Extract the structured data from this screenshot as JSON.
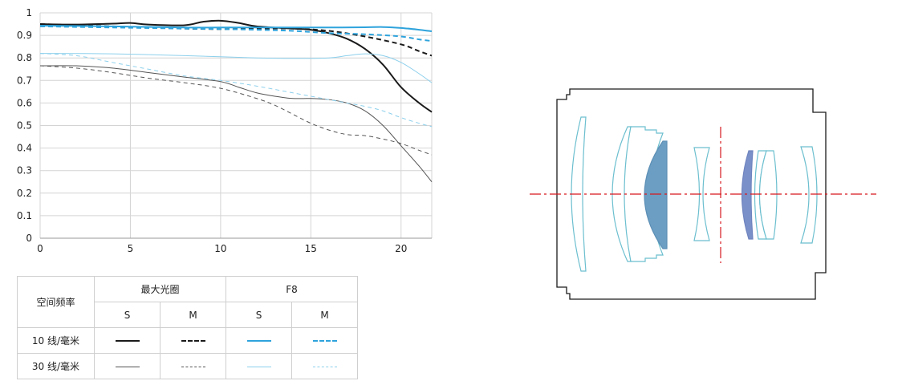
{
  "chart_data": {
    "type": "line",
    "x_ticks": [
      0,
      5,
      10,
      15,
      20
    ],
    "y_ticks": [
      "0",
      "0.1",
      "0.2",
      "0.3",
      "0.4",
      "0.5",
      "0.6",
      "0.7",
      "0.8",
      "0.9",
      "1"
    ],
    "xlim": [
      0,
      21.7
    ],
    "ylim": [
      0,
      1
    ],
    "grid": true,
    "series": [
      {
        "aperture": "最大光圈",
        "freq": "10 线/毫米",
        "type": "S",
        "color": "#1a1a1a",
        "width": 2,
        "dash": "",
        "x": [
          0,
          2,
          4,
          5,
          6,
          8,
          9,
          10,
          11,
          12,
          14,
          15,
          16,
          17,
          18,
          19,
          20,
          21,
          21.7
        ],
        "y": [
          0.95,
          0.948,
          0.952,
          0.955,
          0.948,
          0.945,
          0.96,
          0.965,
          0.955,
          0.94,
          0.93,
          0.925,
          0.91,
          0.885,
          0.84,
          0.77,
          0.67,
          0.6,
          0.56
        ]
      },
      {
        "aperture": "最大光圈",
        "freq": "10 线/毫米",
        "type": "M",
        "color": "#1a1a1a",
        "width": 2,
        "dash": "6,4",
        "x": [
          0,
          2,
          4,
          6,
          8,
          10,
          12,
          14,
          16,
          18,
          20,
          21,
          21.7
        ],
        "y": [
          0.95,
          0.945,
          0.94,
          0.935,
          0.93,
          0.928,
          0.93,
          0.93,
          0.92,
          0.895,
          0.86,
          0.83,
          0.81
        ]
      },
      {
        "aperture": "F8",
        "freq": "10 线/毫米",
        "type": "S",
        "color": "#2ea3dc",
        "width": 2,
        "dash": "",
        "x": [
          0,
          4,
          8,
          10,
          12,
          14,
          16,
          18,
          19,
          20,
          21,
          21.7
        ],
        "y": [
          0.943,
          0.94,
          0.935,
          0.935,
          0.935,
          0.935,
          0.935,
          0.936,
          0.937,
          0.933,
          0.925,
          0.918
        ]
      },
      {
        "aperture": "F8",
        "freq": "10 线/毫米",
        "type": "M",
        "color": "#2ea3dc",
        "width": 2,
        "dash": "6,4",
        "x": [
          0,
          4,
          8,
          10,
          12,
          14,
          16,
          18,
          20,
          21,
          21.7
        ],
        "y": [
          0.94,
          0.935,
          0.93,
          0.928,
          0.925,
          0.92,
          0.91,
          0.905,
          0.895,
          0.882,
          0.875
        ]
      },
      {
        "aperture": "最大光圈",
        "freq": "30 线/毫米",
        "type": "S",
        "color": "#555555",
        "width": 1,
        "dash": "",
        "x": [
          0,
          2,
          4,
          6,
          8,
          10,
          11,
          12,
          13,
          14,
          15,
          16,
          17,
          18,
          19,
          20,
          21,
          21.7
        ],
        "y": [
          0.765,
          0.765,
          0.755,
          0.735,
          0.715,
          0.695,
          0.67,
          0.645,
          0.63,
          0.62,
          0.62,
          0.615,
          0.6,
          0.565,
          0.5,
          0.41,
          0.32,
          0.25
        ]
      },
      {
        "aperture": "最大光圈",
        "freq": "30 线/毫米",
        "type": "M",
        "color": "#555555",
        "width": 1,
        "dash": "5,4",
        "x": [
          0,
          2,
          4,
          6,
          8,
          10,
          12,
          13,
          14,
          15,
          16,
          17,
          18,
          19,
          20,
          21,
          21.7
        ],
        "y": [
          0.765,
          0.755,
          0.735,
          0.71,
          0.69,
          0.665,
          0.62,
          0.59,
          0.55,
          0.51,
          0.48,
          0.46,
          0.455,
          0.44,
          0.42,
          0.39,
          0.37
        ]
      },
      {
        "aperture": "F8",
        "freq": "30 线/毫米",
        "type": "S",
        "color": "#8dd0ec",
        "width": 1,
        "dash": "",
        "x": [
          0,
          4,
          8,
          10,
          12,
          14,
          16,
          17,
          18,
          19,
          20,
          21,
          21.7
        ],
        "y": [
          0.82,
          0.818,
          0.81,
          0.805,
          0.8,
          0.798,
          0.8,
          0.81,
          0.818,
          0.81,
          0.78,
          0.73,
          0.69
        ]
      },
      {
        "aperture": "F8",
        "freq": "30 线/毫米",
        "type": "M",
        "color": "#8dd0ec",
        "width": 1,
        "dash": "5,4",
        "x": [
          0,
          2,
          4,
          6,
          8,
          10,
          12,
          14,
          16,
          17,
          18,
          19,
          20,
          21,
          21.7
        ],
        "y": [
          0.82,
          0.81,
          0.78,
          0.75,
          0.72,
          0.7,
          0.675,
          0.645,
          0.615,
          0.6,
          0.585,
          0.565,
          0.535,
          0.51,
          0.495
        ]
      }
    ]
  },
  "legend": {
    "spatial_freq_label": "空间频率",
    "aperture_max": "最大光圈",
    "aperture_f8": "F8",
    "s": "S",
    "m": "M",
    "row_10": "10 线/毫米",
    "row_30": "30 线/毫米"
  },
  "lens_diagram": {
    "axis_color": "#d7181f",
    "barrel_color": "#1a1a1a",
    "element_outline_color": "#6cbfcf",
    "cemented_element_color": "#6b9ec2",
    "aspherical_element_color": "#7a90c8"
  }
}
